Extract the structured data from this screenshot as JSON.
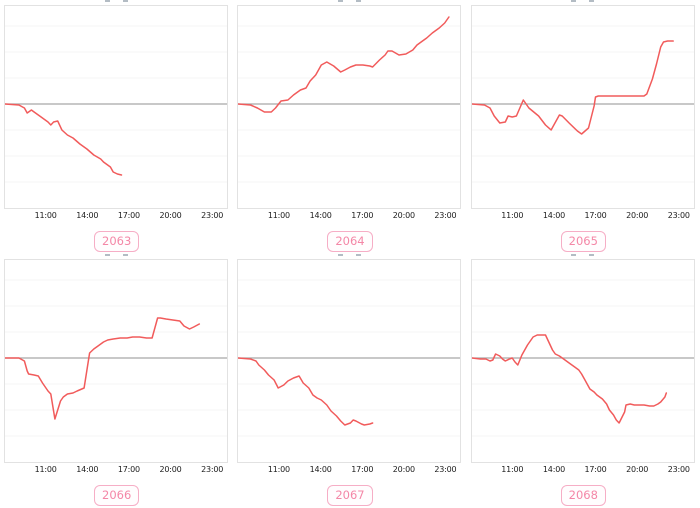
{
  "styles": {
    "line_color": "#f15b5b",
    "zero_line_color": "#a6a6a6",
    "grid_color": "#f4f4f4",
    "panel_border_color": "#e2e2e2",
    "badge_text_color": "#f487a7",
    "badge_border_color": "#f6aec6",
    "tick_text_color": "#1c1c1c"
  },
  "axis": {
    "tick_labels": [
      "11:00",
      "14:00",
      "17:00",
      "20:00",
      "23:00"
    ],
    "tick_hours": [
      11,
      14,
      17,
      20,
      23
    ],
    "x_min_hour": 8,
    "x_max_hour": 24,
    "grid": true,
    "y_axis_labels_visible": false,
    "baseline_value": 0
  },
  "chart_data": [
    {
      "label": "2063",
      "type": "line",
      "baseline": 0,
      "x_unit": "time of day (hours)",
      "y_unit": "relative value vs baseline (no y labels shown)",
      "points": [
        [
          8,
          0
        ],
        [
          9,
          -1
        ],
        [
          9.4,
          -4
        ],
        [
          9.6,
          -9
        ],
        [
          9.9,
          -6
        ],
        [
          10.1,
          -8
        ],
        [
          10.6,
          -13
        ],
        [
          11.1,
          -18
        ],
        [
          11.3,
          -21
        ],
        [
          11.5,
          -18
        ],
        [
          11.8,
          -17
        ],
        [
          12.1,
          -26
        ],
        [
          12.5,
          -31
        ],
        [
          12.9,
          -34
        ],
        [
          13.4,
          -40
        ],
        [
          13.9,
          -45
        ],
        [
          14.4,
          -51
        ],
        [
          14.9,
          -55
        ],
        [
          15.1,
          -58
        ],
        [
          15.6,
          -63
        ],
        [
          15.8,
          -68
        ],
        [
          16.1,
          -70
        ],
        [
          16.4,
          -71
        ]
      ]
    },
    {
      "label": "2064",
      "type": "line",
      "baseline": 0,
      "x_unit": "time of day (hours)",
      "y_unit": "relative value vs baseline (no y labels shown)",
      "points": [
        [
          8,
          0
        ],
        [
          8.9,
          -1
        ],
        [
          9.4,
          -4
        ],
        [
          9.9,
          -8
        ],
        [
          10.4,
          -8
        ],
        [
          10.7,
          -4
        ],
        [
          11.1,
          3
        ],
        [
          11.6,
          4
        ],
        [
          12,
          9
        ],
        [
          12.5,
          14
        ],
        [
          12.9,
          16
        ],
        [
          13.2,
          23
        ],
        [
          13.6,
          29
        ],
        [
          14,
          39
        ],
        [
          14.4,
          42
        ],
        [
          14.9,
          38
        ],
        [
          15.4,
          32
        ],
        [
          15.7,
          34
        ],
        [
          16.1,
          37
        ],
        [
          16.5,
          39
        ],
        [
          17,
          39
        ],
        [
          17.5,
          38
        ],
        [
          17.7,
          37
        ],
        [
          18.2,
          44
        ],
        [
          18.6,
          49
        ],
        [
          18.8,
          53
        ],
        [
          19.1,
          53
        ],
        [
          19.6,
          49
        ],
        [
          20.1,
          50
        ],
        [
          20.6,
          54
        ],
        [
          20.9,
          59
        ],
        [
          21.3,
          63
        ],
        [
          21.6,
          66
        ],
        [
          22,
          71
        ],
        [
          22.5,
          76
        ],
        [
          22.9,
          81
        ],
        [
          23.2,
          87
        ]
      ]
    },
    {
      "label": "2065",
      "type": "line",
      "baseline": 0,
      "x_unit": "time of day (hours)",
      "y_unit": "relative value vs baseline (no y labels shown)",
      "points": [
        [
          8,
          0
        ],
        [
          8.9,
          -1
        ],
        [
          9.3,
          -4
        ],
        [
          9.6,
          -12
        ],
        [
          10,
          -19
        ],
        [
          10.4,
          -18
        ],
        [
          10.6,
          -12
        ],
        [
          10.9,
          -13
        ],
        [
          11.2,
          -12
        ],
        [
          11.7,
          4
        ],
        [
          12.1,
          -4
        ],
        [
          12.8,
          -12
        ],
        [
          13.3,
          -21
        ],
        [
          13.7,
          -26
        ],
        [
          14.3,
          -11
        ],
        [
          14.5,
          -12
        ],
        [
          15,
          -19
        ],
        [
          15.6,
          -27
        ],
        [
          15.9,
          -30
        ],
        [
          16.4,
          -24
        ],
        [
          16.8,
          -2
        ],
        [
          16.9,
          7
        ],
        [
          17.1,
          8
        ],
        [
          18,
          8
        ],
        [
          19,
          8
        ],
        [
          20,
          8
        ],
        [
          20.4,
          8
        ],
        [
          20.6,
          10
        ],
        [
          21,
          25
        ],
        [
          21.3,
          40
        ],
        [
          21.6,
          57
        ],
        [
          21.8,
          62
        ],
        [
          22.1,
          63
        ],
        [
          22.5,
          63
        ]
      ]
    },
    {
      "label": "2066",
      "type": "line",
      "baseline": 0,
      "x_unit": "time of day (hours)",
      "y_unit": "relative value vs baseline (no y labels shown)",
      "points": [
        [
          8,
          0
        ],
        [
          9,
          0
        ],
        [
          9.4,
          -3
        ],
        [
          9.6,
          -13
        ],
        [
          9.7,
          -16
        ],
        [
          10.1,
          -17
        ],
        [
          10.4,
          -18
        ],
        [
          10.7,
          -25
        ],
        [
          11.1,
          -33
        ],
        [
          11.3,
          -36
        ],
        [
          11.6,
          -61
        ],
        [
          12,
          -43
        ],
        [
          12.2,
          -39
        ],
        [
          12.5,
          -36
        ],
        [
          12.9,
          -35
        ],
        [
          13.2,
          -33
        ],
        [
          13.7,
          -30
        ],
        [
          14.1,
          5
        ],
        [
          14.4,
          9
        ],
        [
          14.7,
          12
        ],
        [
          15.1,
          16
        ],
        [
          15.4,
          18
        ],
        [
          15.8,
          19
        ],
        [
          16.3,
          20
        ],
        [
          16.8,
          20
        ],
        [
          17.2,
          21
        ],
        [
          17.7,
          21
        ],
        [
          18.2,
          20
        ],
        [
          18.6,
          20
        ],
        [
          19,
          40
        ],
        [
          19.2,
          40
        ],
        [
          19.6,
          39
        ],
        [
          20.1,
          38
        ],
        [
          20.6,
          37
        ],
        [
          20.9,
          32
        ],
        [
          21.3,
          29
        ],
        [
          21.6,
          31
        ],
        [
          22,
          34
        ]
      ]
    },
    {
      "label": "2067",
      "type": "line",
      "baseline": 0,
      "x_unit": "time of day (hours)",
      "y_unit": "relative value vs baseline (no y labels shown)",
      "points": [
        [
          8,
          0
        ],
        [
          8.9,
          -1
        ],
        [
          9.3,
          -3
        ],
        [
          9.5,
          -7
        ],
        [
          9.9,
          -12
        ],
        [
          10.2,
          -17
        ],
        [
          10.6,
          -22
        ],
        [
          10.9,
          -30
        ],
        [
          11.3,
          -27
        ],
        [
          11.6,
          -23
        ],
        [
          12,
          -20
        ],
        [
          12.4,
          -18
        ],
        [
          12.7,
          -25
        ],
        [
          13.1,
          -30
        ],
        [
          13.4,
          -37
        ],
        [
          13.7,
          -40
        ],
        [
          14,
          -42
        ],
        [
          14.4,
          -47
        ],
        [
          14.7,
          -53
        ],
        [
          15.1,
          -58
        ],
        [
          15.4,
          -63
        ],
        [
          15.7,
          -67
        ],
        [
          16.1,
          -65
        ],
        [
          16.3,
          -62
        ],
        [
          16.5,
          -63
        ],
        [
          16.9,
          -66
        ],
        [
          17.1,
          -67
        ],
        [
          17.5,
          -66
        ],
        [
          17.7,
          -65
        ]
      ]
    },
    {
      "label": "2068",
      "type": "line",
      "baseline": 0,
      "x_unit": "time of day (hours)",
      "y_unit": "relative value vs baseline (no y labels shown)",
      "points": [
        [
          8,
          0
        ],
        [
          8.6,
          -1
        ],
        [
          9,
          -1
        ],
        [
          9.3,
          -3
        ],
        [
          9.5,
          -2
        ],
        [
          9.7,
          4
        ],
        [
          10,
          2
        ],
        [
          10.2,
          -1
        ],
        [
          10.4,
          -3
        ],
        [
          10.7,
          -1
        ],
        [
          10.9,
          0
        ],
        [
          11.1,
          -4
        ],
        [
          11.3,
          -7
        ],
        [
          11.6,
          3
        ],
        [
          12,
          13
        ],
        [
          12.4,
          21
        ],
        [
          12.7,
          23
        ],
        [
          13.1,
          23
        ],
        [
          13.3,
          23
        ],
        [
          13.6,
          14
        ],
        [
          13.8,
          8
        ],
        [
          14,
          4
        ],
        [
          14.3,
          2
        ],
        [
          14.5,
          0
        ],
        [
          14.7,
          -2
        ],
        [
          15.1,
          -6
        ],
        [
          15.4,
          -9
        ],
        [
          15.7,
          -12
        ],
        [
          15.9,
          -16
        ],
        [
          16.1,
          -21
        ],
        [
          16.5,
          -31
        ],
        [
          16.8,
          -34
        ],
        [
          17,
          -37
        ],
        [
          17.4,
          -41
        ],
        [
          17.7,
          -46
        ],
        [
          17.9,
          -52
        ],
        [
          18.2,
          -57
        ],
        [
          18.4,
          -62
        ],
        [
          18.6,
          -65
        ],
        [
          19,
          -54
        ],
        [
          19.1,
          -47
        ],
        [
          19.4,
          -46
        ],
        [
          19.7,
          -47
        ],
        [
          20.1,
          -47
        ],
        [
          20.4,
          -47
        ],
        [
          20.8,
          -48
        ],
        [
          21.1,
          -48
        ],
        [
          21.4,
          -46
        ],
        [
          21.6,
          -44
        ],
        [
          21.9,
          -39
        ],
        [
          22,
          -35
        ]
      ]
    }
  ]
}
